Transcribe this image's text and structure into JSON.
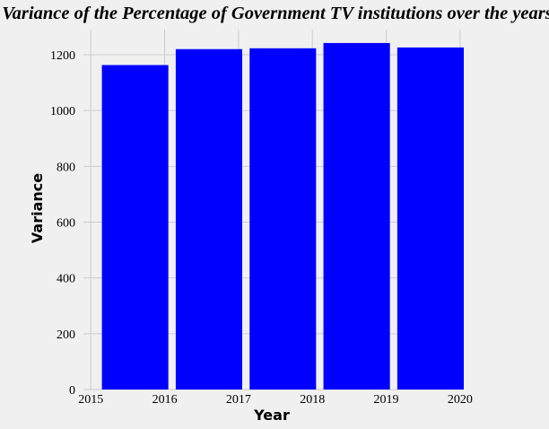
{
  "chart_data": {
    "type": "bar",
    "title": "Variance of the Percentage of Government TV institutions over the years",
    "xlabel": "Year",
    "ylabel": "Variance",
    "categories": [
      "2015",
      "2016",
      "2017",
      "2018",
      "2019"
    ],
    "values": [
      1163,
      1220,
      1223,
      1242,
      1226
    ],
    "bar_x_start": [
      2015.15,
      2016.15,
      2017.15,
      2018.15,
      2019.15
    ],
    "bar_width": 0.9,
    "xlim": [
      2014.9,
      2020.05
    ],
    "ylim": [
      0,
      1290
    ],
    "xticks": [
      2015,
      2016,
      2017,
      2018,
      2019,
      2020
    ],
    "yticks": [
      0,
      200,
      400,
      600,
      800,
      1000,
      1200
    ],
    "grid": true,
    "colors": {
      "bar": "#0000ff",
      "background": "#f0f0f0",
      "grid": "#cbcbcb"
    }
  }
}
